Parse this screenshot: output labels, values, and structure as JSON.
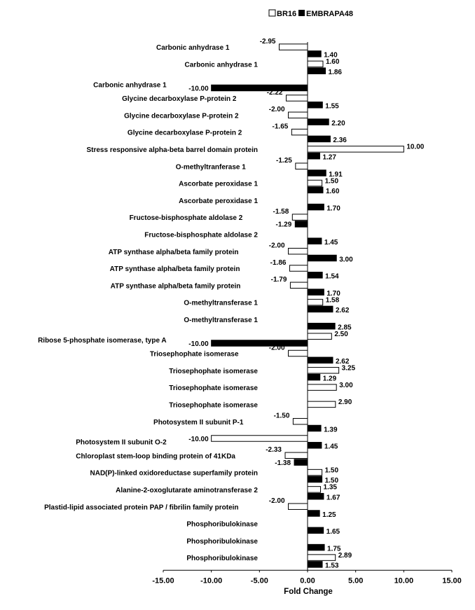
{
  "chart_data": {
    "type": "bar",
    "orientation": "horizontal",
    "title": "",
    "xlabel": "Fold Change",
    "ylabel": "",
    "xlim": [
      -15,
      15
    ],
    "xticks": [
      -15,
      -10,
      -5,
      0,
      5,
      10,
      15
    ],
    "xtick_labels": [
      "-15.00",
      "-10.00",
      "-5.00",
      "0.00",
      "5.00",
      "10.00",
      "15.00"
    ],
    "legend_position": "top-right",
    "categories": [
      "Carbonic anhydrase 1",
      "Carbonic anhydrase 1",
      "Carbonic anhydrase 1",
      "Glycine decarboxylase P-protein 2",
      "Glycine decarboxylase P-protein 2",
      "Glycine decarboxylase P-protein 2",
      "Stress responsive alpha-beta barrel domain protein",
      "O-methyltranferase 1",
      "Ascorbate peroxidase 1",
      "Ascorbate peroxidase 1",
      "Fructose-bisphosphate aldolase 2",
      "Fructose-bisphosphate aldolase 2",
      "ATP synthase alpha/beta family protein",
      "ATP synthase alpha/beta family protein",
      "ATP synthase alpha/beta family protein",
      "O-methyltransferase 1",
      "O-methyltransferase 1",
      "Ribose 5-phosphate isomerase, type A",
      "Triosephophate isomerase",
      "Triosephophate isomerase",
      "Triosephophate isomerase",
      "Triosephophate isomerase",
      "Photosystem II subunit P-1",
      "Photosystem II subunit O-2",
      "Chloroplast stem-loop binding protein of 41KDa",
      "NAD(P)-linked oxidoreductase superfamily protein",
      "Alanine-2-oxoglutarate aminotransferase 2",
      "Plastid-lipid associated protein PAP / fibrilin family protein",
      "Phosphoribulokinase",
      "Phosphoribulokinase",
      "Phosphoribulokinase"
    ],
    "series": [
      {
        "name": "BR16",
        "color": "#ffffff",
        "values": [
          -2.95,
          1.6,
          null,
          -2.22,
          -2.0,
          -1.65,
          10.0,
          -1.25,
          1.5,
          null,
          -1.58,
          null,
          -2.0,
          -1.86,
          -1.79,
          1.58,
          null,
          2.5,
          -2.0,
          3.25,
          3.0,
          2.9,
          -1.5,
          -10.0,
          -2.33,
          1.5,
          1.35,
          -2.0,
          null,
          null,
          2.89
        ],
        "labels": [
          "-2.95",
          "1.60",
          null,
          "-2.22",
          "-2.00",
          "-1.65",
          "10.00",
          "-1.25",
          "1.50",
          null,
          "-1.58",
          null,
          "-2.00",
          "-1.86",
          "-1.79",
          "1.58",
          null,
          "2.50",
          "-2.00",
          "3.25",
          "3.00",
          "2.90",
          "-1.50",
          "-10.00",
          "-2.33",
          "1.50",
          "1.35",
          "-2.00",
          null,
          null,
          "2.89"
        ]
      },
      {
        "name": "EMBRAPA48",
        "color": "#000000",
        "values": [
          1.4,
          1.86,
          -10.0,
          1.55,
          2.2,
          2.36,
          1.27,
          1.91,
          1.6,
          1.7,
          -1.29,
          1.45,
          3.0,
          1.54,
          1.7,
          2.62,
          2.85,
          -10.0,
          2.62,
          1.29,
          null,
          null,
          1.39,
          1.45,
          -1.38,
          1.5,
          1.67,
          1.25,
          1.65,
          1.75,
          1.53
        ],
        "labels": [
          "1.40",
          "1.86",
          "-10.00",
          "1.55",
          "2.20",
          "2.36",
          "1.27",
          "1.91",
          "1.60",
          "1.70",
          "-1.29",
          "1.45",
          "3.00",
          "1.54",
          "1.70",
          "2.62",
          "2.85",
          "-10.00",
          "2.62",
          "1.29",
          null,
          null,
          "1.39",
          "1.45",
          "-1.38",
          "1.50",
          "1.67",
          "1.25",
          "1.65",
          "1.75",
          "1.53"
        ]
      }
    ]
  }
}
